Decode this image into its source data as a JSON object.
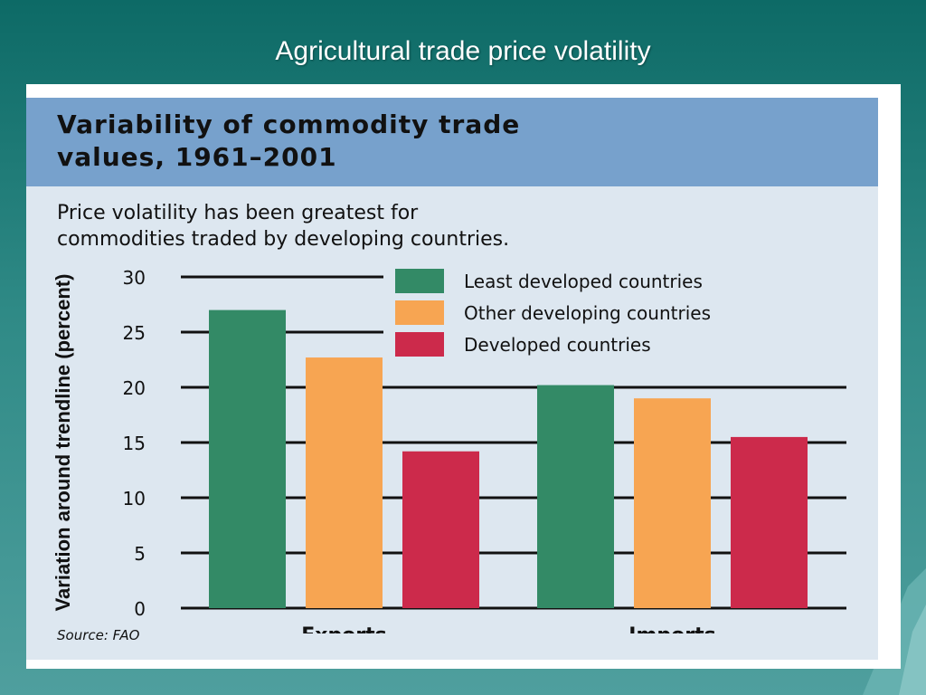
{
  "slide": {
    "title": "Agricultural trade price volatility"
  },
  "panel": {
    "title_line1": "Variability of commodity trade",
    "title_line2": "values, 1961–2001",
    "subtitle_line1": "Price volatility has been greatest for",
    "subtitle_line2": "commodities traded by developing countries.",
    "source": "Source: FAO"
  },
  "colors": {
    "slide_background": "#1f7b77",
    "header_band": "#77a1cc",
    "panel_background": "#dde7f0"
  },
  "chart_data": {
    "type": "bar",
    "title": "Variability of commodity trade values, 1961–2001",
    "categories": [
      "Exports",
      "Imports"
    ],
    "ylabel": "Variation around trendline (percent)",
    "xlabel": "",
    "ylim": [
      0,
      30
    ],
    "yticks": [
      0,
      5,
      10,
      15,
      20,
      25,
      30
    ],
    "grid": true,
    "legend_position": "top-right",
    "series": [
      {
        "name": "Least developed countries",
        "color": "#338a66",
        "values": [
          27,
          20.2
        ]
      },
      {
        "name": "Other developing countries",
        "color": "#f7a552",
        "values": [
          22.7,
          19
        ]
      },
      {
        "name": "Developed countries",
        "color": "#cc2a4b",
        "values": [
          14.2,
          15.5
        ]
      }
    ]
  }
}
